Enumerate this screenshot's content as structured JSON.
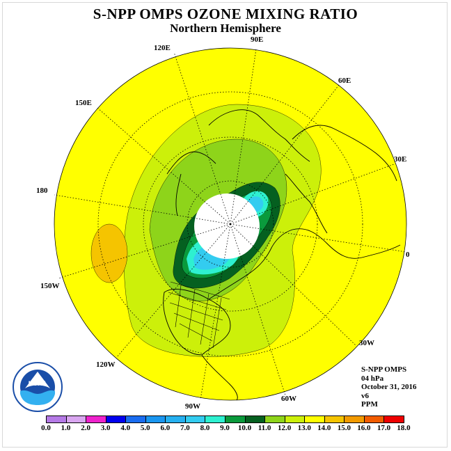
{
  "title": "S-NPP OMPS OZONE MIXING RATIO",
  "subtitle": "Northern Hemisphere",
  "longitude_labels": [
    "90E",
    "60E",
    "30E",
    "0",
    "30W",
    "60W",
    "90W",
    "120W",
    "150W",
    "180",
    "150E",
    "120E"
  ],
  "info": {
    "instrument": "S-NPP OMPS",
    "level": "04 hPa",
    "date": "October 31, 2016",
    "version": "v6",
    "units": "PPM"
  },
  "colorbar": {
    "ticks": [
      "0.0",
      "1.0",
      "2.0",
      "3.0",
      "4.0",
      "5.0",
      "6.0",
      "7.0",
      "8.0",
      "9.0",
      "10.0",
      "11.0",
      "12.0",
      "13.0",
      "14.0",
      "15.0",
      "16.0",
      "17.0",
      "18.0"
    ],
    "colors": [
      "#b57ae6",
      "#d9a6f0",
      "#ee22cc",
      "#0000ee",
      "#1a6cf0",
      "#1a96f0",
      "#26b0f0",
      "#33ccf0",
      "#2ef0d0",
      "#0a9a3c",
      "#056020",
      "#8ed41a",
      "#ccf00a",
      "#ffff00",
      "#f5c400",
      "#f29a00",
      "#f25c00",
      "#ee0000",
      "#8a5a3c"
    ]
  },
  "map_data": {
    "projection": "north polar stereographic",
    "field": "ozone mixing ratio (PPM)",
    "dominant_value_range": "12.0-13.0",
    "polar_night_region": "no data (white)"
  },
  "logo_text": "NOAA"
}
